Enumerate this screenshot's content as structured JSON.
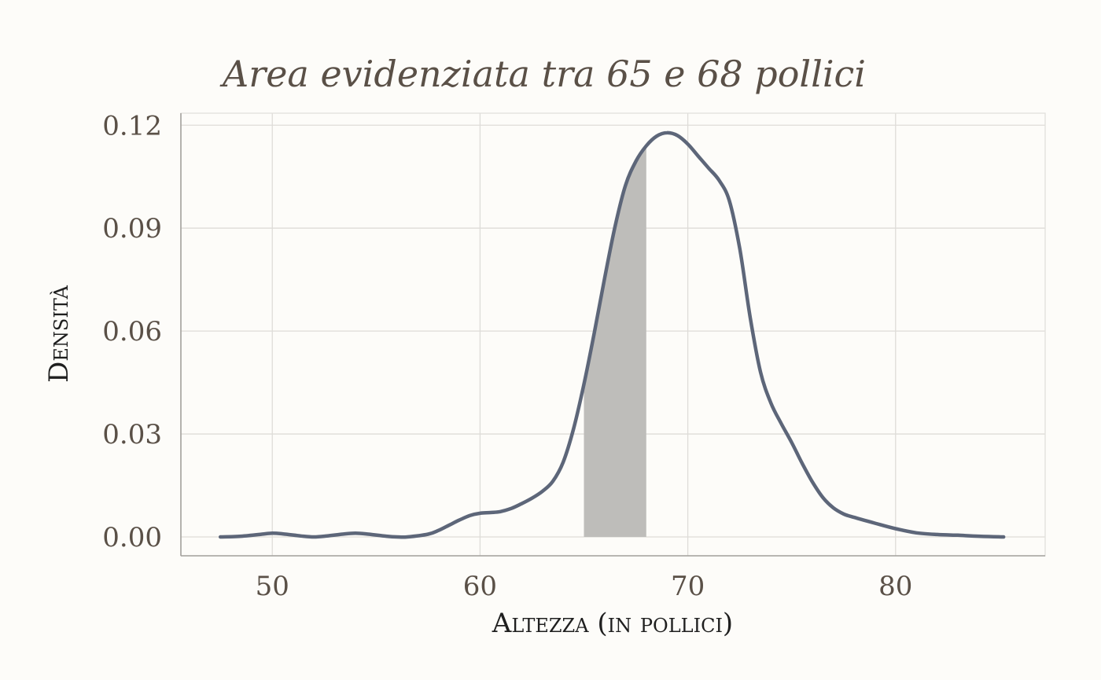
{
  "chart_data": {
    "type": "area",
    "title": "Area evidenziata tra 65 e 68 pollici",
    "xlabel": "Altezza (in pollici)",
    "ylabel": "Densità",
    "xlim": [
      45.6,
      87.2
    ],
    "ylim": [
      -0.0055,
      0.1235
    ],
    "x_ticks": [
      50,
      60,
      70,
      80
    ],
    "x_tick_labels": [
      "50",
      "60",
      "70",
      "80"
    ],
    "y_ticks": [
      0,
      0.03,
      0.06,
      0.09,
      0.12
    ],
    "y_tick_labels": [
      "0.00",
      "0.03",
      "0.06",
      "0.09",
      "0.12"
    ],
    "grid": true,
    "highlight": {
      "from": 65,
      "to": 68,
      "color": "#bebdba"
    },
    "line_color": "#5d6679",
    "density": {
      "x": [
        47.5,
        48.5,
        49.5,
        50,
        50.5,
        51.5,
        52,
        52.5,
        53.5,
        54,
        54.5,
        55.5,
        56,
        56.5,
        57.5,
        58,
        58.5,
        59,
        59.5,
        60,
        60.5,
        61,
        61.5,
        62,
        62.5,
        63,
        63.5,
        64,
        64.5,
        65,
        65.5,
        66,
        66.5,
        67,
        67.5,
        68,
        68.5,
        69,
        69.5,
        70,
        70.5,
        71,
        71.5,
        72,
        72.5,
        73,
        73.5,
        74,
        74.5,
        75,
        75.5,
        76,
        76.5,
        77,
        77.5,
        78,
        79,
        80,
        81,
        82,
        83,
        84,
        85.2
      ],
      "y": [
        0,
        0.0002,
        0.0008,
        0.0011,
        0.0009,
        0.0002,
        0,
        0.0002,
        0.0009,
        0.0011,
        0.0009,
        0.0002,
        0,
        0,
        0.0008,
        0.0019,
        0.0034,
        0.0049,
        0.0062,
        0.0069,
        0.0071,
        0.0074,
        0.0083,
        0.0097,
        0.0113,
        0.0133,
        0.0162,
        0.0218,
        0.0315,
        0.0445,
        0.0595,
        0.0755,
        0.0905,
        0.1025,
        0.1095,
        0.114,
        0.1168,
        0.1178,
        0.117,
        0.1145,
        0.111,
        0.1075,
        0.104,
        0.098,
        0.084,
        0.064,
        0.048,
        0.039,
        0.033,
        0.0275,
        0.0215,
        0.016,
        0.0115,
        0.0085,
        0.0067,
        0.0057,
        0.004,
        0.0024,
        0.0012,
        0.0007,
        0.0005,
        0.0002,
        0
      ]
    }
  }
}
